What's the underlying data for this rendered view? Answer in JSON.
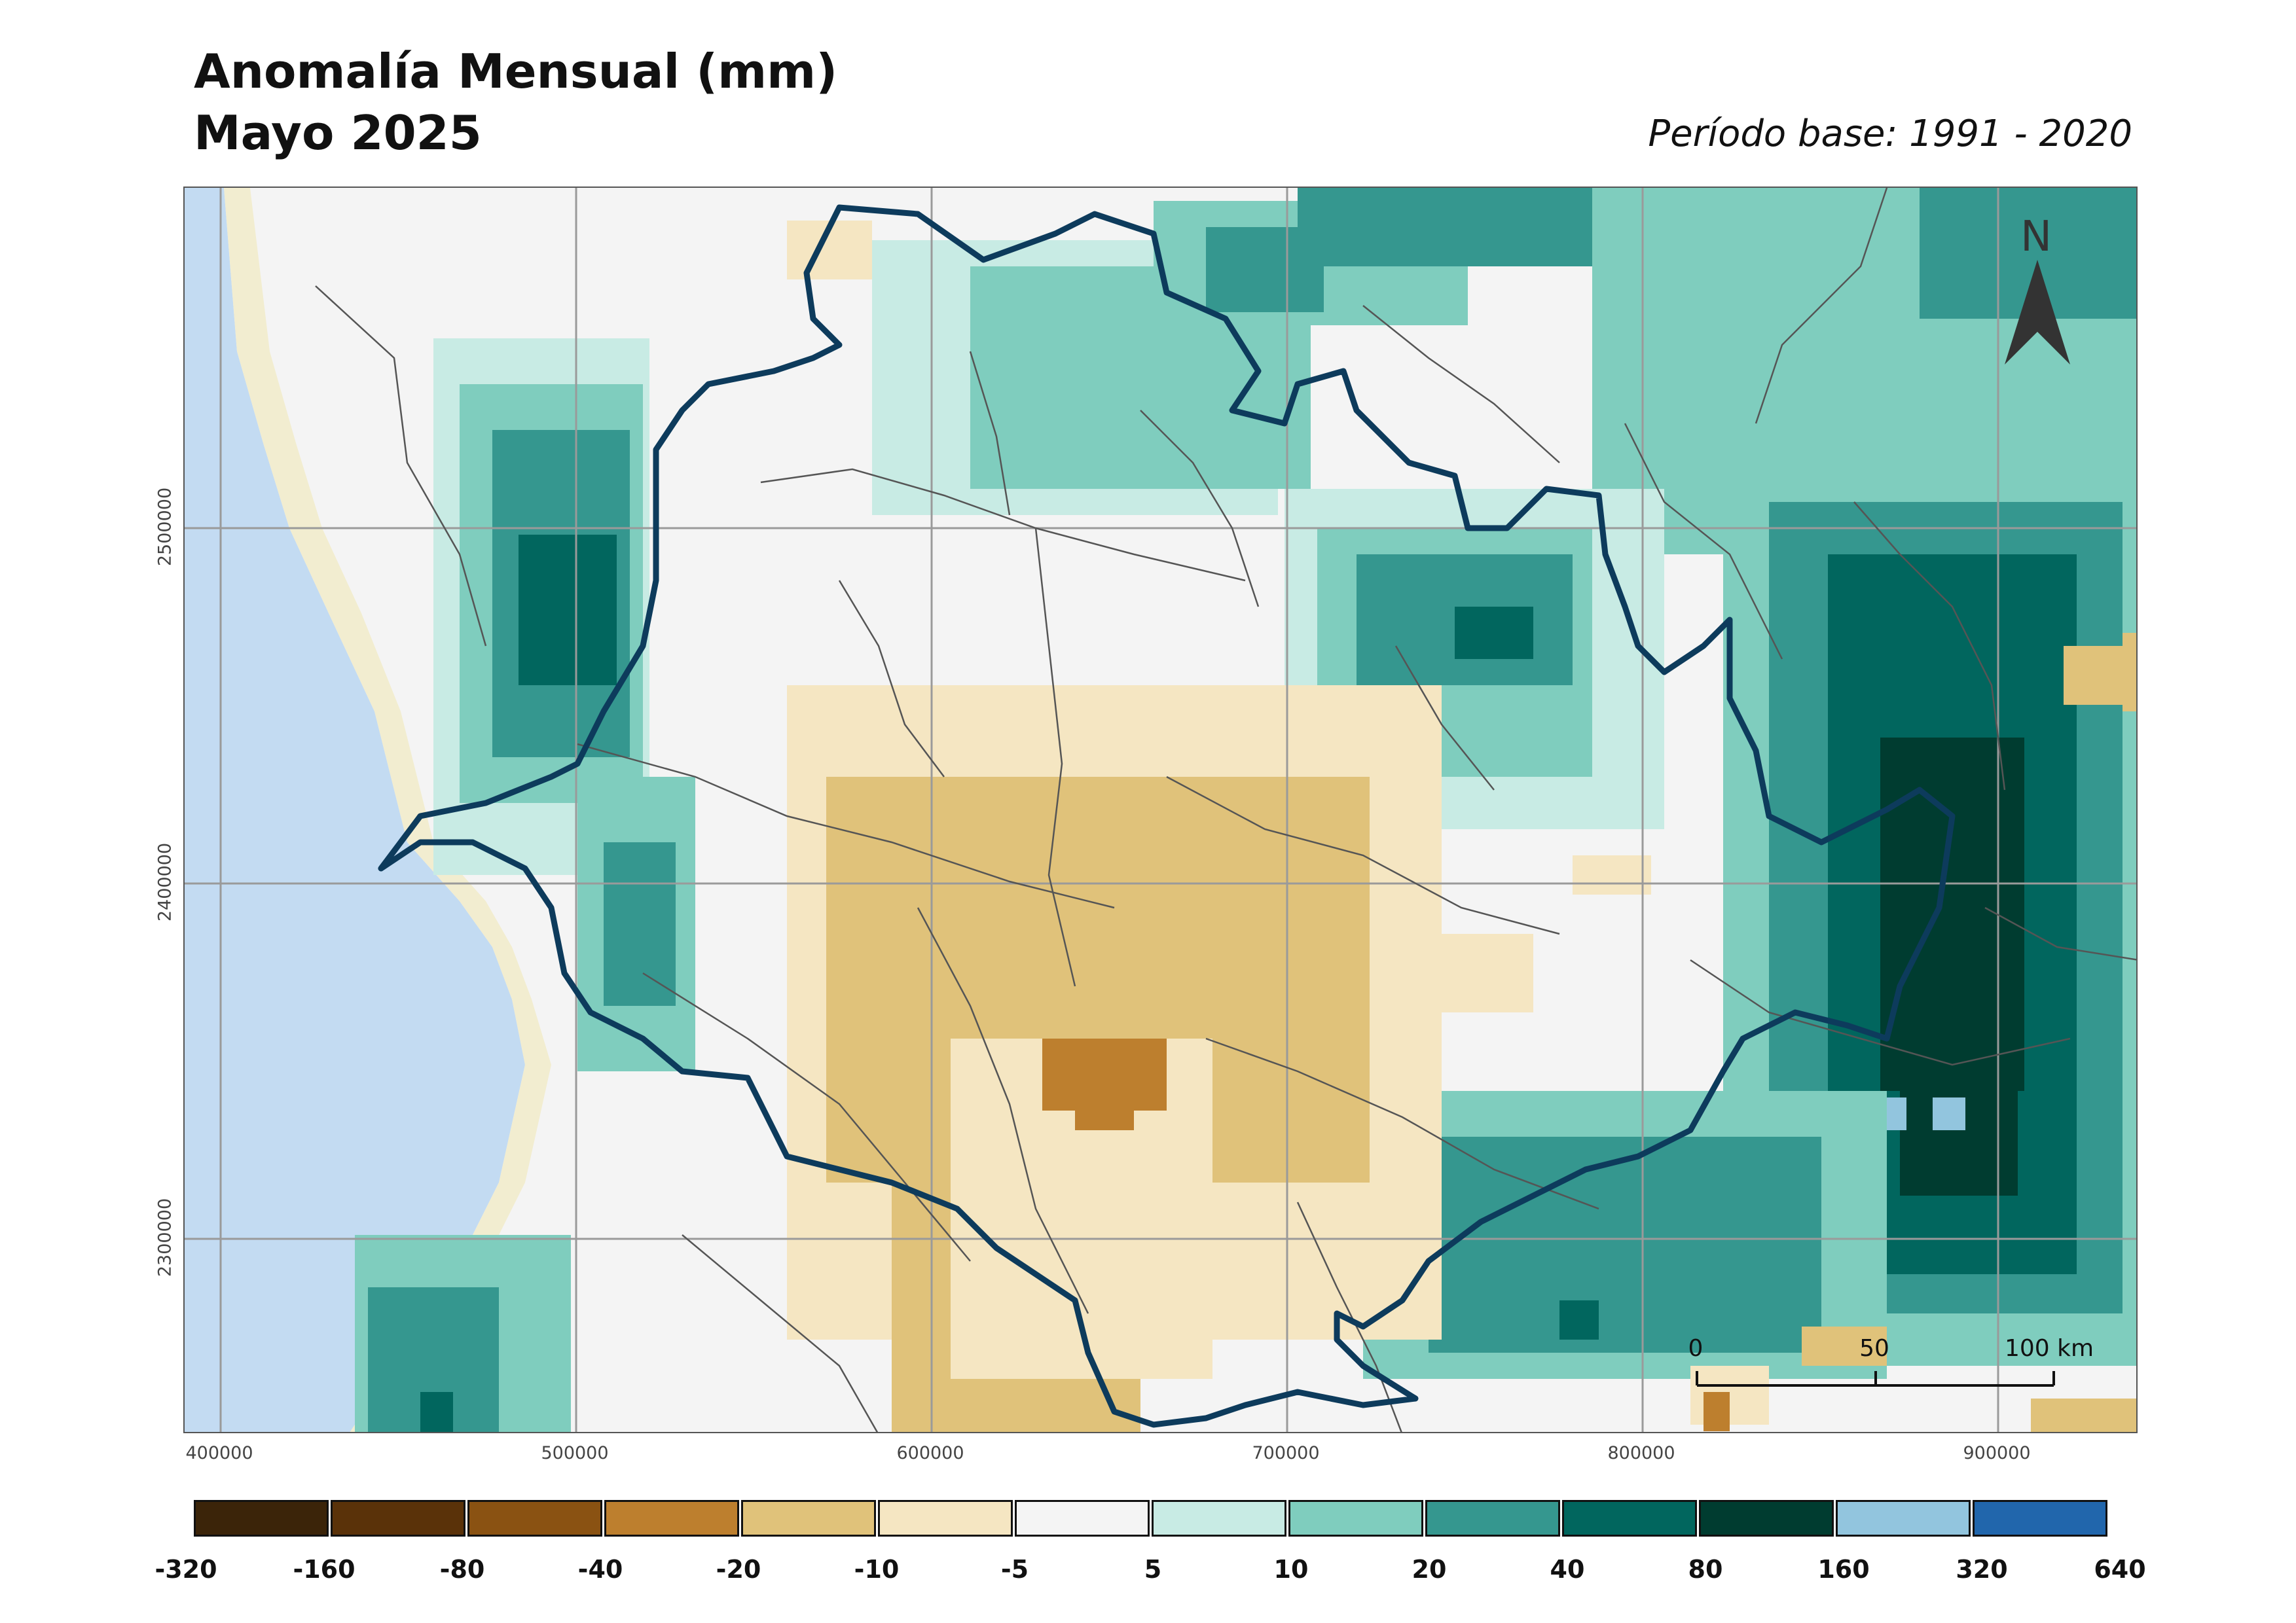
{
  "title": {
    "line1": "Anomalía Mensual (mm)",
    "line2": "Mayo 2025"
  },
  "base_period": "Período base: 1991 - 2020",
  "map": {
    "x_ticks": [
      "400000",
      "500000",
      "600000",
      "700000",
      "800000",
      "900000"
    ],
    "y_ticks": [
      "2500000",
      "2400000",
      "2300000"
    ],
    "north_label": "N",
    "scale_bar": {
      "labels": [
        "0",
        "50",
        "100 km"
      ]
    },
    "colors": {
      "ocean": "#c3dbf2",
      "land_background": "#f4f4f4",
      "boundary_outline": "#0d3b5c",
      "municipal_lines": "#555555",
      "graticule": "#9a9a9a"
    }
  },
  "legend": {
    "classes": [
      {
        "color": "#3b2409"
      },
      {
        "color": "#5a3209"
      },
      {
        "color": "#8a5212"
      },
      {
        "color": "#bd7f2e"
      },
      {
        "color": "#e0c27a"
      },
      {
        "color": "#f5e6c2"
      },
      {
        "color": "#f4f4f4"
      },
      {
        "color": "#c8ebe4"
      },
      {
        "color": "#7fcdbe"
      },
      {
        "color": "#35978f"
      },
      {
        "color": "#01665e"
      },
      {
        "color": "#003c30"
      },
      {
        "color": "#92c5de"
      },
      {
        "color": "#2166ac"
      }
    ],
    "breaks": [
      "-320",
      "-160",
      "-80",
      "-40",
      "-20",
      "-10",
      "-5",
      "5",
      "10",
      "20",
      "40",
      "80",
      "160",
      "320",
      "640"
    ]
  }
}
